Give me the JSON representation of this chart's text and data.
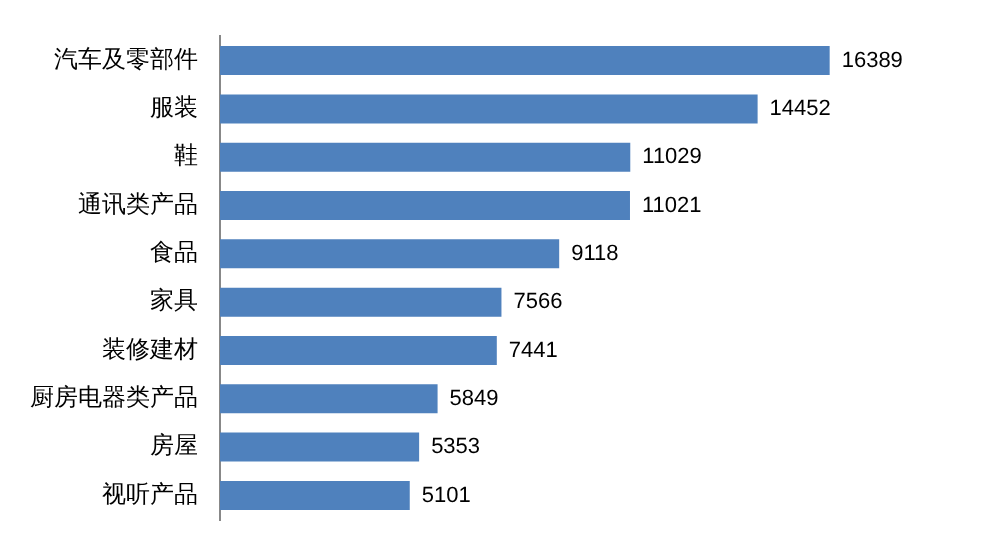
{
  "chart_data": {
    "type": "bar",
    "orientation": "horizontal",
    "categories": [
      "汽车及零部件",
      "服装",
      "鞋",
      "通讯类产品",
      "食品",
      "家具",
      "装修建材",
      "厨房电器类产品",
      "房屋",
      "视听产品"
    ],
    "values": [
      16389,
      14452,
      11029,
      11021,
      9118,
      7566,
      7441,
      5849,
      5353,
      5101
    ],
    "color": "#4f81bd",
    "data_labels": true
  }
}
